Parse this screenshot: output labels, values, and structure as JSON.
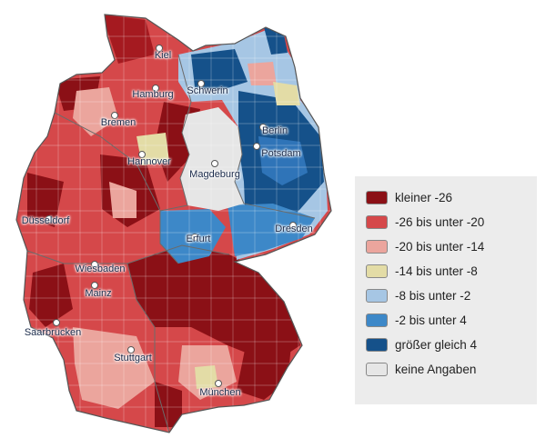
{
  "legend": {
    "items": [
      {
        "label": "kleiner -26",
        "color": "#8b1016"
      },
      {
        "label": "-26 bis unter -20",
        "color": "#d5484a"
      },
      {
        "label": "-20 bis unter -14",
        "color": "#eba59d"
      },
      {
        "label": "-14 bis unter -8",
        "color": "#e3dca6"
      },
      {
        "label": "-8 bis unter -2",
        "color": "#a6c6e4"
      },
      {
        "label": "-2 bis unter 4",
        "color": "#3d88c8"
      },
      {
        "label": "größer gleich 4",
        "color": "#15518a"
      },
      {
        "label": "keine Angaben",
        "color": "#e6e6e6"
      }
    ]
  },
  "cities": [
    {
      "name": "Kiel"
    },
    {
      "name": "Hamburg"
    },
    {
      "name": "Schwerin"
    },
    {
      "name": "Bremen"
    },
    {
      "name": "Berlin"
    },
    {
      "name": "Potsdam"
    },
    {
      "name": "Hannover"
    },
    {
      "name": "Magdeburg"
    },
    {
      "name": "Düsseldorf"
    },
    {
      "name": "Erfurt"
    },
    {
      "name": "Dresden"
    },
    {
      "name": "Wiesbaden"
    },
    {
      "name": "Mainz"
    },
    {
      "name": "Saarbrücken"
    },
    {
      "name": "Stuttgart"
    },
    {
      "name": "München"
    }
  ]
}
